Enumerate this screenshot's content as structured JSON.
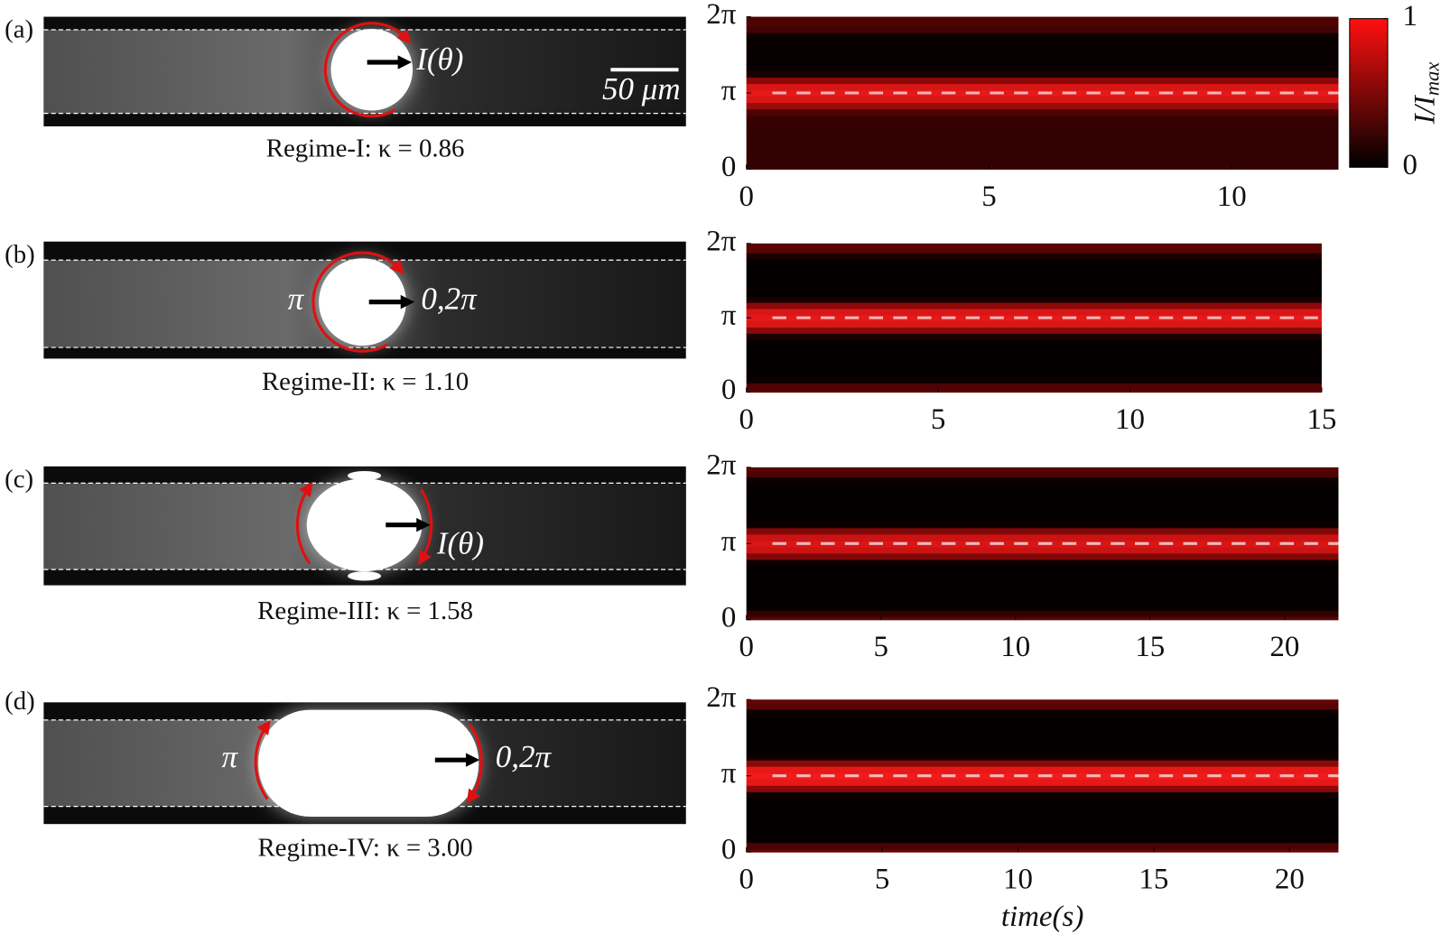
{
  "panels": [
    {
      "label": "(a)",
      "caption": "Regime-I: κ = 0.86",
      "annotations": [
        "I(θ)",
        "50 μm"
      ]
    },
    {
      "label": "(b)",
      "caption": "Regime-II: κ = 1.10",
      "annotations": [
        "π",
        "0,2π"
      ]
    },
    {
      "label": "(c)",
      "caption": "Regime-III: κ = 1.58",
      "annotations": [
        "I(θ)"
      ]
    },
    {
      "label": "(d)",
      "caption": "Regime-IV: κ = 3.00",
      "annotations": [
        "π",
        "0,2π"
      ]
    }
  ],
  "chart_data": [
    {
      "type": "heatmap",
      "xlim": [
        0,
        12.2
      ],
      "xticks": [
        0,
        5,
        10
      ],
      "ylim": [
        0,
        6.28318
      ],
      "yticks": [
        0,
        {
          "value": 3.14159,
          "label": "π"
        },
        {
          "value": 6.28318,
          "label": "2π"
        }
      ],
      "y": [
        0,
        0.2618,
        0.5236,
        0.7854,
        1.0472,
        1.309,
        1.5708,
        1.8326,
        2.0944,
        2.3562,
        2.618,
        2.8798,
        3.1416,
        3.4034,
        3.6652,
        3.927,
        4.1888,
        4.4506,
        4.7124,
        4.9742,
        5.236,
        5.4978,
        5.7596,
        6.0214,
        6.2832
      ],
      "values": [
        0.22,
        0.2,
        0.2,
        0.2,
        0.2,
        0.2,
        0.2,
        0.2,
        0.22,
        0.3,
        0.6,
        0.85,
        0.9,
        0.85,
        0.55,
        0.1,
        0.04,
        0.03,
        0.03,
        0.03,
        0.03,
        0.05,
        0.25,
        0.3,
        0.3
      ],
      "hline": 3.14159,
      "colorbar": {
        "zlim": [
          0,
          1
        ],
        "ticks": [
          0,
          1
        ],
        "label": "I/I",
        "label_subscript": "max"
      }
    },
    {
      "type": "heatmap",
      "xlim": [
        0,
        15
      ],
      "xticks": [
        0,
        5,
        10,
        15
      ],
      "ylim": [
        0,
        6.28318
      ],
      "yticks": [
        0,
        {
          "value": 3.14159,
          "label": "π"
        },
        {
          "value": 6.28318,
          "label": "2π"
        }
      ],
      "y": [
        0,
        0.2618,
        0.5236,
        0.7854,
        1.0472,
        1.309,
        1.5708,
        1.8326,
        2.0944,
        2.3562,
        2.618,
        2.8798,
        3.1416,
        3.4034,
        3.6652,
        3.927,
        4.1888,
        4.4506,
        4.7124,
        4.9742,
        5.236,
        5.4978,
        5.7596,
        6.0214,
        6.2832
      ],
      "values": [
        0.35,
        0.3,
        0.04,
        0.02,
        0.02,
        0.02,
        0.02,
        0.02,
        0.02,
        0.1,
        0.55,
        0.85,
        0.9,
        0.85,
        0.55,
        0.1,
        0.02,
        0.02,
        0.02,
        0.02,
        0.02,
        0.02,
        0.1,
        0.35,
        0.35
      ],
      "hline": 3.14159
    },
    {
      "type": "heatmap",
      "xlim": [
        0,
        22
      ],
      "xticks": [
        0,
        5,
        10,
        15,
        20
      ],
      "ylim": [
        0,
        6.28318
      ],
      "yticks": [
        0,
        {
          "value": 3.14159,
          "label": "π"
        },
        {
          "value": 6.28318,
          "label": "2π"
        }
      ],
      "y": [
        0,
        0.2618,
        0.5236,
        0.7854,
        1.0472,
        1.309,
        1.5708,
        1.8326,
        2.0944,
        2.3562,
        2.618,
        2.8798,
        3.1416,
        3.4034,
        3.6652,
        3.927,
        4.1888,
        4.4506,
        4.7124,
        4.9742,
        5.236,
        5.4978,
        5.7596,
        6.0214,
        6.2832
      ],
      "values": [
        0.35,
        0.2,
        0.02,
        0.02,
        0.02,
        0.02,
        0.02,
        0.02,
        0.02,
        0.05,
        0.5,
        0.8,
        0.85,
        0.8,
        0.5,
        0.05,
        0.02,
        0.02,
        0.02,
        0.02,
        0.02,
        0.02,
        0.05,
        0.3,
        0.35
      ],
      "hline": 3.14159
    },
    {
      "type": "heatmap",
      "xlim": [
        0,
        21.8
      ],
      "xticks": [
        0,
        5,
        10,
        15,
        20
      ],
      "ylim": [
        0,
        6.28318
      ],
      "yticks": [
        0,
        {
          "value": 3.14159,
          "label": "π"
        },
        {
          "value": 6.28318,
          "label": "2π"
        }
      ],
      "y": [
        0,
        0.2618,
        0.5236,
        0.7854,
        1.0472,
        1.309,
        1.5708,
        1.8326,
        2.0944,
        2.3562,
        2.618,
        2.8798,
        3.1416,
        3.4034,
        3.6652,
        3.927,
        4.1888,
        4.4506,
        4.7124,
        4.9742,
        5.236,
        5.4978,
        5.7596,
        6.0214,
        6.2832
      ],
      "values": [
        0.4,
        0.3,
        0.02,
        0.02,
        0.02,
        0.02,
        0.02,
        0.02,
        0.02,
        0.05,
        0.55,
        0.9,
        0.95,
        0.9,
        0.55,
        0.05,
        0.02,
        0.02,
        0.02,
        0.02,
        0.02,
        0.02,
        0.05,
        0.35,
        0.4
      ],
      "hline": 3.14159,
      "xlabel": "time(s)"
    }
  ]
}
